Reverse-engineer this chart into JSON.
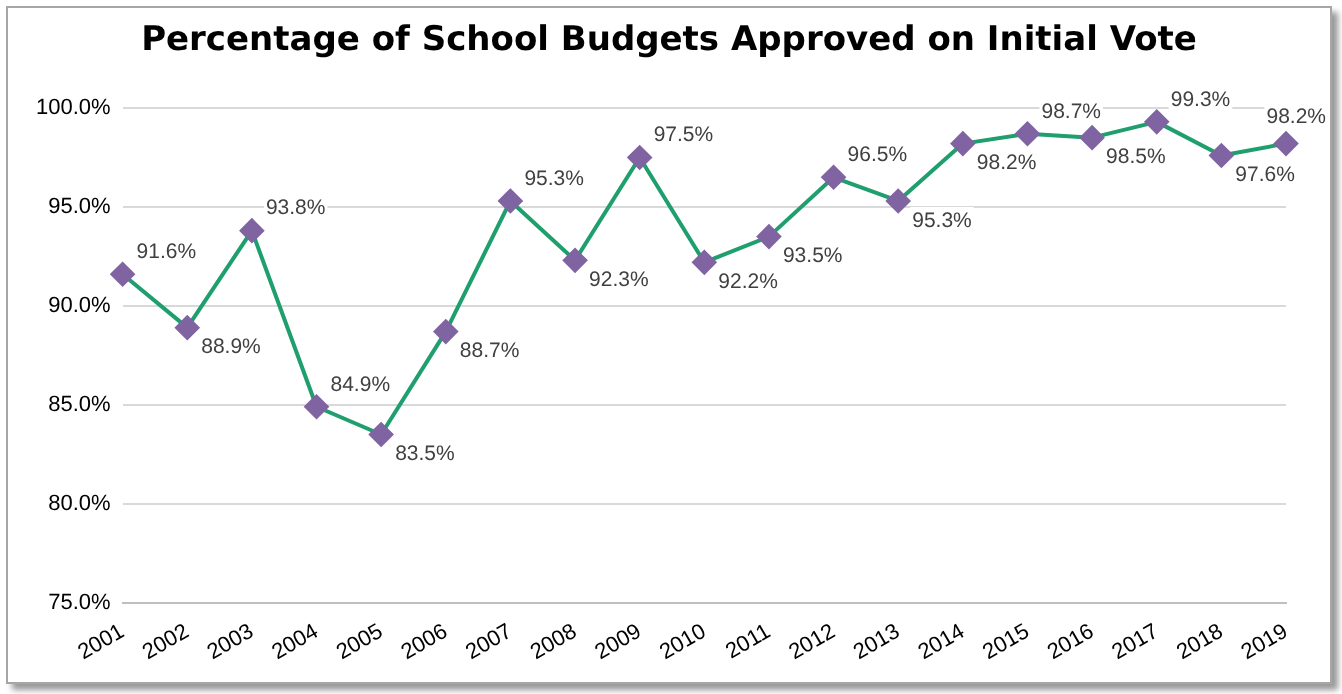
{
  "chart_data": {
    "type": "line",
    "title": "Percentage of School Budgets Approved on Initial Vote",
    "categories": [
      "2001",
      "2002",
      "2003",
      "2004",
      "2005",
      "2006",
      "2007",
      "2008",
      "2009",
      "2010",
      "2011",
      "2012",
      "2013",
      "2014",
      "2015",
      "2016",
      "2017",
      "2018",
      "2019"
    ],
    "series": [
      {
        "color": "#1f9e6e",
        "colors": [
          "#8064a2",
          "#8064a2",
          "#8064a2",
          "#8064a2",
          "#8064a2",
          "#8064a2",
          "#8064a2",
          "#8064a2",
          "#8064a2",
          "#8064a2",
          "#8064a2",
          "#8064a2",
          "#8064a2",
          "#8064a2",
          "#8064a2",
          "#8064a2",
          "#8064a2",
          "#8064a2",
          "#8064a2"
        ],
        "values": [
          91.6,
          88.9,
          93.8,
          84.9,
          83.5,
          88.7,
          95.3,
          92.3,
          97.5,
          92.2,
          93.5,
          96.5,
          95.3,
          98.2,
          98.7,
          98.5,
          99.3,
          97.6,
          98.2
        ],
        "value_labels": [
          "91.6%",
          "88.9%",
          "93.8%",
          "84.9%",
          "83.5%",
          "88.7%",
          "95.3%",
          "92.3%",
          "97.5%",
          "92.2%",
          "93.5%",
          "96.5%",
          "95.3%",
          "98.2%",
          "98.7%",
          "98.5%",
          "99.3%",
          "97.6%",
          "98.2%"
        ]
      }
    ],
    "ylim": [
      75,
      100
    ],
    "yticks": [
      {
        "value": 75,
        "label": "75.0%"
      },
      {
        "value": 80,
        "label": "80.0%"
      },
      {
        "value": 85,
        "label": "85.0%"
      },
      {
        "value": 90,
        "label": "90.0%"
      },
      {
        "value": 95,
        "label": "95.0%"
      },
      {
        "value": 100,
        "label": "100.0%"
      }
    ],
    "grid": "y",
    "marker": "diamond",
    "line_style": "solid",
    "legend": false
  }
}
